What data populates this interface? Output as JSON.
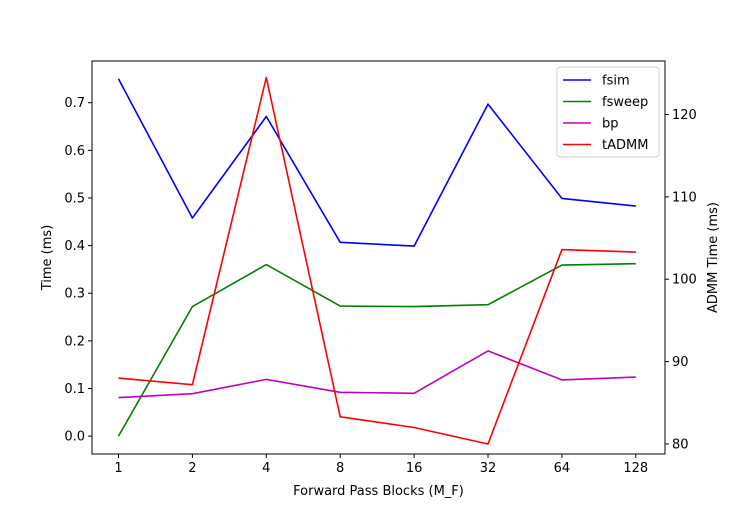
{
  "chart_data": {
    "type": "line",
    "categories": [
      "1",
      "2",
      "4",
      "8",
      "16",
      "32",
      "64",
      "128"
    ],
    "xlabel": "Forward Pass Blocks (M_F)",
    "ylabel": "Time (ms)",
    "y2label": "ADMM Time (ms)",
    "ylim": [
      -0.0375,
      0.7875
    ],
    "y2lim": [
      78.78,
      126.5
    ],
    "yticks": [
      "0.0",
      "0.1",
      "0.2",
      "0.3",
      "0.4",
      "0.5",
      "0.6",
      "0.7"
    ],
    "y2ticks": [
      "80",
      "90",
      "100",
      "110",
      "120"
    ],
    "grid": false,
    "legend_position": "top-right",
    "series": [
      {
        "name": "fsim",
        "axis": "left",
        "color": "#0000ff",
        "values": [
          0.75,
          0.458,
          0.671,
          0.407,
          0.399,
          0.697,
          0.499,
          0.483
        ]
      },
      {
        "name": "fsweep",
        "axis": "left",
        "color": "#008000",
        "values": [
          0.0,
          0.272,
          0.36,
          0.273,
          0.272,
          0.276,
          0.359,
          0.362
        ]
      },
      {
        "name": "bp",
        "axis": "left",
        "color": "#bf00bf",
        "values": [
          0.081,
          0.089,
          0.119,
          0.092,
          0.09,
          0.179,
          0.118,
          0.124
        ]
      },
      {
        "name": "tADMM",
        "axis": "right",
        "color": "#ff0000",
        "values": [
          88.0,
          87.2,
          124.5,
          83.3,
          82.0,
          80.0,
          103.6,
          103.3
        ]
      }
    ]
  }
}
